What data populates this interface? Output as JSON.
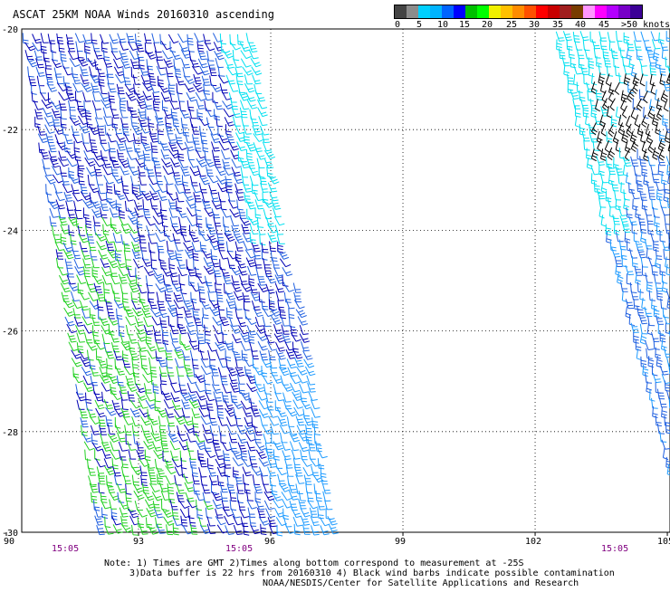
{
  "title": "ASCAT 25KM NOAA Winds 20160310 ascending",
  "scale": {
    "colors": [
      "#555555",
      "#888888",
      "#00c8ff",
      "#00a0ff",
      "#0000ff",
      "#00b000",
      "#00ff00",
      "#ffff00",
      "#ffa000",
      "#ff6000",
      "#ff2000",
      "#ff0000",
      "#a00000",
      "#603000",
      "#ff80ff",
      "#ff00ff",
      "#a000ff",
      "#6000c0",
      "#400080",
      "#200040",
      "#000040"
    ],
    "labels": [
      "0",
      "5",
      "10",
      "15",
      "20",
      "25",
      "30",
      "35",
      "40",
      "45",
      ">50 knots"
    ]
  },
  "axes": {
    "lat_labels": [
      "-20",
      "-22",
      "-24",
      "-26",
      "-28",
      "-30"
    ],
    "lon_labels": [
      "90",
      "93",
      "96",
      "99",
      "102",
      "105"
    ],
    "time_labels": [
      "15:05",
      "15:05",
      "15:05"
    ]
  },
  "notes": {
    "line1": "Note: 1) Times are GMT 2)Times along bottom correspond to measurement at -25S",
    "line2": "3)Data buffer is 22 hrs from 20160310 4) Black wind barbs indicate possible contamination",
    "line3": "NOAA/NESDIS/Center for Satellite Applications and Research"
  },
  "colors": {
    "dark_blue": "#0000b4",
    "mid_blue": "#1f5fe0",
    "light_blue": "#1e9bff",
    "cyan": "#00e0f0",
    "green": "#20d020",
    "black": "#000000",
    "time_label": "#800080",
    "grid": "#000000"
  }
}
